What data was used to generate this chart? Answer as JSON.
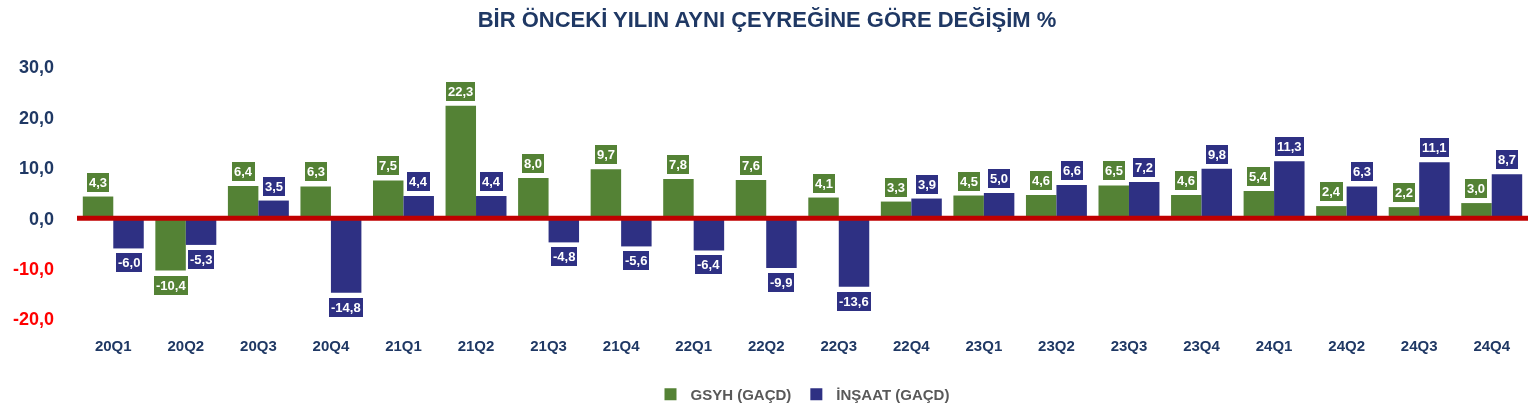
{
  "chart_data": {
    "type": "bar",
    "title": "BİR ÖNCEKİ YILIN AYNI ÇEYREĞİNE GÖRE DEĞİŞİM %",
    "categories": [
      "20Q1",
      "20Q2",
      "20Q3",
      "20Q4",
      "21Q1",
      "21Q2",
      "21Q3",
      "21Q4",
      "22Q1",
      "22Q2",
      "22Q3",
      "22Q4",
      "23Q1",
      "23Q2",
      "23Q3",
      "23Q4",
      "24Q1",
      "24Q2",
      "24Q3",
      "24Q4"
    ],
    "series": [
      {
        "name": "GSYH (GAÇD)",
        "color": "#548235",
        "values": [
          4.3,
          -10.4,
          6.4,
          6.3,
          7.5,
          22.3,
          8.0,
          9.7,
          7.8,
          7.6,
          4.1,
          3.3,
          4.5,
          4.6,
          6.5,
          4.6,
          5.4,
          2.4,
          2.2,
          3.0
        ],
        "value_labels": [
          "4,3",
          "-10,4",
          "6,4",
          "6,3",
          "7,5",
          "22,3",
          "8,0",
          "9,7",
          "7,8",
          "7,6",
          "4,1",
          "3,3",
          "4,5",
          "4,6",
          "6,5",
          "4,6",
          "5,4",
          "2,4",
          "2,2",
          "3,0"
        ]
      },
      {
        "name": "İNŞAAT (GAÇD)",
        "color": "#2e3083",
        "values": [
          -6.0,
          -5.3,
          3.5,
          -14.8,
          4.4,
          4.4,
          -4.8,
          -5.6,
          -6.4,
          -9.9,
          -13.6,
          3.9,
          5.0,
          6.6,
          7.2,
          9.8,
          11.3,
          6.3,
          11.1,
          8.7
        ],
        "value_labels": [
          "-6,0",
          "-5,3",
          "3,5",
          "-14,8",
          "4,4",
          "4,4",
          "-4,8",
          "-5,6",
          "-6,4",
          "-9,9",
          "-13,6",
          "3,9",
          "5,0",
          "6,6",
          "7,2",
          "9,8",
          "11,3",
          "6,3",
          "11,1",
          "8,7"
        ]
      }
    ],
    "ylim": [
      -20,
      30
    ],
    "yticks": [
      {
        "value": -20,
        "label": "-20,0"
      },
      {
        "value": -10,
        "label": "-10,0"
      },
      {
        "value": 0,
        "label": "0,0"
      },
      {
        "value": 10,
        "label": "10,0"
      },
      {
        "value": 20,
        "label": "20,0"
      },
      {
        "value": 30,
        "label": "30,0"
      }
    ],
    "ref_lines": [
      {
        "axis": "y",
        "value": 0,
        "color": "#c00000"
      }
    ],
    "grid": false,
    "legend": "bottom"
  }
}
